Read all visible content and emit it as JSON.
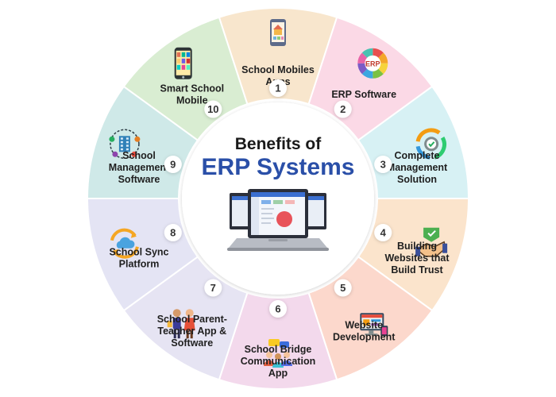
{
  "center": {
    "title_line1": "Benefits of",
    "title_line2": "ERP Systems",
    "title_line2_color": "#2a4fa8"
  },
  "segments": [
    {
      "number": "1",
      "lines": [
        "School Mobiles",
        "Apps"
      ],
      "color": "#f8e6cd",
      "icon": "school-app-icon"
    },
    {
      "number": "2",
      "lines": [
        "ERP Software"
      ],
      "color": "#fbd9e6",
      "icon": "erp-wheel-icon"
    },
    {
      "number": "3",
      "lines": [
        "Complete",
        "Management",
        "Solution"
      ],
      "color": "#d7f1f4",
      "icon": "gear-cycle-icon"
    },
    {
      "number": "4",
      "lines": [
        "Building",
        "Websites that",
        "Build Trust"
      ],
      "color": "#fbe4cc",
      "icon": "handshake-icon"
    },
    {
      "number": "5",
      "lines": [
        "Website",
        "Development"
      ],
      "color": "#fcd8cc",
      "icon": "web-dev-icon"
    },
    {
      "number": "6",
      "lines": [
        "School Bridge",
        "Communication",
        "App"
      ],
      "color": "#f3d9ec",
      "icon": "chat-people-icon"
    },
    {
      "number": "7",
      "lines": [
        "School Parent-",
        "Teacher App &",
        "Software"
      ],
      "color": "#e6e4f3",
      "icon": "parent-teacher-icon"
    },
    {
      "number": "8",
      "lines": [
        "School Sync",
        "Platform"
      ],
      "color": "#e4e4f4",
      "icon": "cloud-sync-icon"
    },
    {
      "number": "9",
      "lines": [
        "School",
        "Management",
        "Software"
      ],
      "color": "#cfe9e8",
      "icon": "building-network-icon"
    },
    {
      "number": "10",
      "lines": [
        "Smart School",
        "Mobile"
      ],
      "color": "#d9edd2",
      "icon": "smartphone-icon"
    }
  ]
}
